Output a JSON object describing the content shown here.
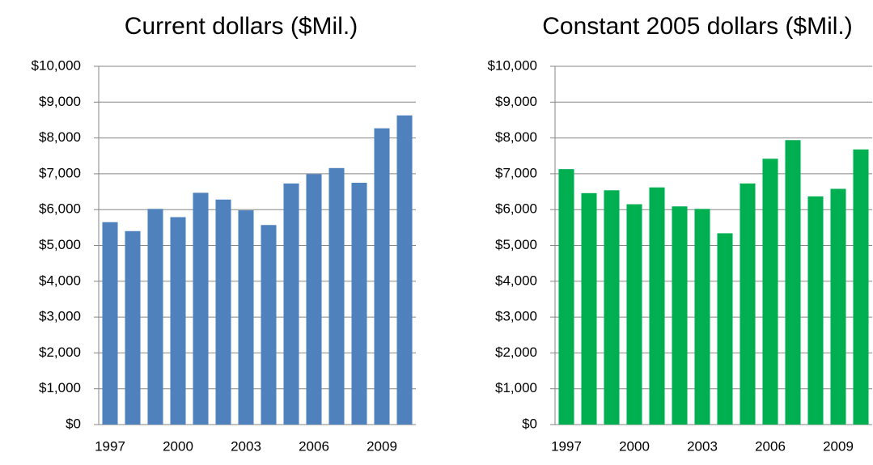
{
  "chart_data": [
    {
      "type": "bar",
      "title": "Current dollars ($Mil.)",
      "categories": [
        "1997",
        null,
        null,
        "2000",
        null,
        null,
        "2003",
        null,
        null,
        "2006",
        null,
        null,
        "2009",
        null
      ],
      "values": [
        5650,
        5400,
        6020,
        5790,
        6470,
        6280,
        5980,
        5570,
        6730,
        6990,
        7160,
        6750,
        8270,
        8630
      ],
      "color": "#4f81bd",
      "ylim": [
        0,
        10000
      ],
      "yticks": [
        {
          "value": 0,
          "label": "$0"
        },
        {
          "value": 1000,
          "label": "$1,000"
        },
        {
          "value": 2000,
          "label": "$2,000"
        },
        {
          "value": 3000,
          "label": "$3,000"
        },
        {
          "value": 4000,
          "label": "$4,000"
        },
        {
          "value": 5000,
          "label": "$5,000"
        },
        {
          "value": 6000,
          "label": "$6,000"
        },
        {
          "value": 7000,
          "label": "$7,000"
        },
        {
          "value": 8000,
          "label": "$8,000"
        },
        {
          "value": 9000,
          "label": "$9,000"
        },
        {
          "value": 10000,
          "label": "$10,000"
        }
      ],
      "grid": true
    },
    {
      "type": "bar",
      "title": "Constant 2005 dollars ($Mil.)",
      "categories": [
        "1997",
        null,
        null,
        "2000",
        null,
        null,
        "2003",
        null,
        null,
        "2006",
        null,
        null,
        "2009",
        null
      ],
      "values": [
        7130,
        6460,
        6540,
        6150,
        6620,
        6090,
        6020,
        5340,
        6730,
        7420,
        7940,
        6370,
        6580,
        7680
      ],
      "color": "#00b050",
      "ylim": [
        0,
        10000
      ],
      "yticks": [
        {
          "value": 0,
          "label": "$0"
        },
        {
          "value": 1000,
          "label": "$1,000"
        },
        {
          "value": 2000,
          "label": "$2,000"
        },
        {
          "value": 3000,
          "label": "$3,000"
        },
        {
          "value": 4000,
          "label": "$4,000"
        },
        {
          "value": 5000,
          "label": "$5,000"
        },
        {
          "value": 6000,
          "label": "$6,000"
        },
        {
          "value": 7000,
          "label": "$7,000"
        },
        {
          "value": 8000,
          "label": "$8,000"
        },
        {
          "value": 9000,
          "label": "$9,000"
        },
        {
          "value": 10000,
          "label": "$10,000"
        }
      ],
      "grid": true
    }
  ]
}
